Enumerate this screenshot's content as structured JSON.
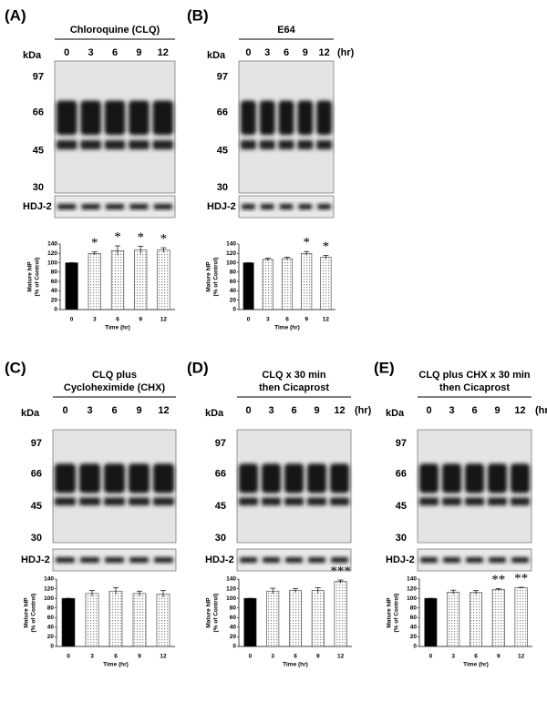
{
  "panels": [
    {
      "label": "(A)",
      "title": [
        "Chloroquine (CLQ)"
      ],
      "kda": "kDa",
      "lanes": [
        "0",
        "3",
        "6",
        "9",
        "12"
      ],
      "markers": [
        "97",
        "66",
        "45",
        "30"
      ],
      "loading": "HDJ-2"
    },
    {
      "label": "(B)",
      "title": [
        "E64"
      ],
      "kda": "kDa",
      "lanes": [
        "0",
        "3",
        "6",
        "9",
        "12"
      ],
      "unit": "(hr)",
      "markers": [
        "97",
        "66",
        "45",
        "30"
      ],
      "loading": "HDJ-2"
    },
    {
      "label": "(C)",
      "title": [
        "CLQ plus",
        "Cycloheximide (CHX)"
      ],
      "kda": "kDa",
      "lanes": [
        "0",
        "3",
        "6",
        "9",
        "12"
      ],
      "markers": [
        "97",
        "66",
        "45",
        "30"
      ],
      "loading": "HDJ-2"
    },
    {
      "label": "(D)",
      "title": [
        "CLQ x 30 min",
        "then Cicaprost"
      ],
      "kda": "kDa",
      "lanes": [
        "0",
        "3",
        "6",
        "9",
        "12"
      ],
      "unit": "(hr)",
      "markers": [
        "97",
        "66",
        "45",
        "30"
      ],
      "loading": "HDJ-2"
    },
    {
      "label": "(E)",
      "title": [
        "CLQ plus CHX x 30 min",
        "then Cicaprost"
      ],
      "kda": "kDa",
      "lanes": [
        "0",
        "3",
        "6",
        "9",
        "12"
      ],
      "unit": "(hr)",
      "markers": [
        "97",
        "66",
        "45",
        "30"
      ],
      "loading": "HDJ-2"
    }
  ],
  "chart_data": [
    {
      "type": "bar",
      "ylabel": [
        "Mature hIP",
        "(% of Control)"
      ],
      "xlabel": "Time (hr)",
      "categories": [
        "0",
        "3",
        "6",
        "9",
        "12"
      ],
      "values": [
        100,
        120,
        126,
        127,
        127
      ],
      "errors": [
        0,
        3,
        10,
        8,
        5
      ],
      "annotations": [
        null,
        "*",
        "*",
        "*",
        "*"
      ],
      "ylim": [
        0,
        140
      ],
      "yticks": [
        0,
        20,
        40,
        60,
        80,
        100,
        120,
        140
      ]
    },
    {
      "type": "bar",
      "ylabel": [
        "Mature hIP",
        "(% of Control)"
      ],
      "xlabel": "Time (hr)",
      "categories": [
        "0",
        "3",
        "6",
        "9",
        "12"
      ],
      "values": [
        100,
        107,
        109,
        120,
        112
      ],
      "errors": [
        0,
        3,
        3,
        4,
        4
      ],
      "annotations": [
        null,
        null,
        null,
        "*",
        "*"
      ],
      "ylim": [
        0,
        140
      ],
      "yticks": [
        0,
        20,
        40,
        60,
        80,
        100,
        120,
        140
      ]
    },
    {
      "type": "bar",
      "ylabel": [
        "Mature hIP",
        "(% of Control)"
      ],
      "xlabel": "Time (hr)",
      "categories": [
        "0",
        "3",
        "6",
        "9",
        "12"
      ],
      "values": [
        100,
        110,
        115,
        110,
        109
      ],
      "errors": [
        0,
        6,
        7,
        5,
        7
      ],
      "annotations": [
        null,
        null,
        null,
        null,
        null
      ],
      "ylim": [
        0,
        140
      ],
      "yticks": [
        0,
        20,
        40,
        60,
        80,
        100,
        120,
        140
      ]
    },
    {
      "type": "bar",
      "ylabel": [
        "Mature hIP",
        "(% of Control)"
      ],
      "xlabel": "Time (hr)",
      "categories": [
        "0",
        "3",
        "6",
        "9",
        "12"
      ],
      "values": [
        100,
        115,
        116,
        116,
        135
      ],
      "errors": [
        0,
        6,
        4,
        6,
        3
      ],
      "annotations": [
        null,
        null,
        null,
        null,
        "***"
      ],
      "ylim": [
        0,
        140
      ],
      "yticks": [
        0,
        20,
        40,
        60,
        80,
        100,
        120,
        140
      ]
    },
    {
      "type": "bar",
      "ylabel": [
        "Mature hIP",
        "(% of Control)"
      ],
      "xlabel": "Time (hr)",
      "categories": [
        "0",
        "3",
        "6",
        "9",
        "12"
      ],
      "values": [
        100,
        113,
        112,
        118,
        122
      ],
      "errors": [
        0,
        4,
        4,
        2,
        1
      ],
      "annotations": [
        null,
        null,
        null,
        "**",
        "**"
      ],
      "ylim": [
        0,
        140
      ],
      "yticks": [
        0,
        20,
        40,
        60,
        80,
        100,
        120,
        140
      ]
    }
  ]
}
